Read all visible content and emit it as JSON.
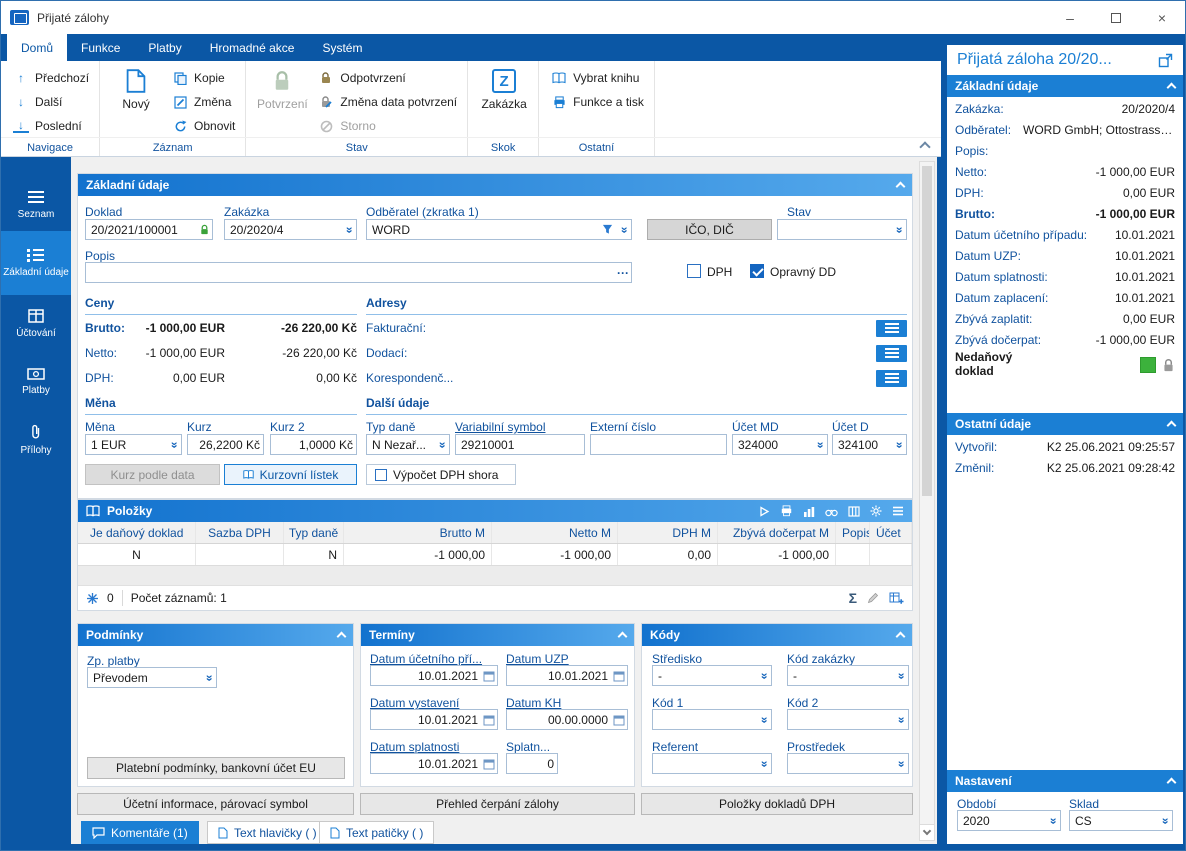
{
  "window": {
    "title": "Přijaté zálohy"
  },
  "icons": {
    "arrow_up": "↑",
    "arrow_down": "↓",
    "dd": "«",
    "sigma": "Σ",
    "ellipsis": "···",
    "minimize": "–",
    "close": "×"
  },
  "ribbon": {
    "tabs": [
      "Domů",
      "Funkce",
      "Platby",
      "Hromadné akce",
      "Systém"
    ],
    "groups": {
      "navigace": {
        "label": "Navigace",
        "items": [
          "Předchozí",
          "Další",
          "Poslední"
        ]
      },
      "zaznam": {
        "label": "Záznam",
        "big": "Nový",
        "items": [
          "Kopie",
          "Změna",
          "Obnovit"
        ]
      },
      "stav": {
        "label": "Stav",
        "big": "Potvrzení",
        "items": [
          "Odpotvrzení",
          "Změna data potvrzení",
          "Storno"
        ]
      },
      "skok": {
        "label": "Skok",
        "big": "Zakázka",
        "z_glyph": "Z"
      },
      "ostatni": {
        "label": "Ostatní",
        "items": [
          "Vybrat knihu",
          "Funkce a tisk"
        ]
      }
    }
  },
  "sidebar": {
    "items": [
      "Seznam",
      "Základní údaje",
      "Účtování",
      "Platby",
      "Přílohy"
    ],
    "active_index": 1
  },
  "form": {
    "title": "Základní údaje",
    "doklad": {
      "label": "Doklad",
      "value": "20/2021/100001"
    },
    "zakazka": {
      "label": "Zakázka",
      "value": "20/2020/4"
    },
    "odberatel": {
      "label": "Odběratel (zkratka 1)",
      "value": "WORD"
    },
    "ico_dic_button": "IČO, DIČ",
    "stav": {
      "label": "Stav",
      "value": ""
    },
    "popis": {
      "label": "Popis",
      "value": ""
    },
    "dph": {
      "label": "DPH",
      "checked": false
    },
    "opravny_dd": {
      "label": "Opravný DD",
      "checked": true
    },
    "ceny": {
      "title": "Ceny",
      "rows": [
        {
          "label": "Brutto:",
          "eur": "-1 000,00 EUR",
          "kc": "-26 220,00 Kč",
          "bold": true
        },
        {
          "label": "Netto:",
          "eur": "-1 000,00 EUR",
          "kc": "-26 220,00 Kč",
          "bold": false
        },
        {
          "label": "DPH:",
          "eur": "0,00 EUR",
          "kc": "0,00 Kč",
          "bold": false
        }
      ]
    },
    "adresy": {
      "title": "Adresy",
      "rows": [
        "Fakturační:",
        "Dodací:",
        "Korespondenč..."
      ]
    },
    "mena": {
      "title": "Měna",
      "mena": {
        "label": "Měna",
        "value": "1 EUR"
      },
      "kurz": {
        "label": "Kurz",
        "value": "26,2200 Kč"
      },
      "kurz2": {
        "label": "Kurz 2",
        "value": "1,0000 Kč"
      },
      "kurz_podle_data": "Kurz podle data",
      "kurzovni_listek": "Kurzovní lístek"
    },
    "dalsi": {
      "title": "Další údaje",
      "typ_dane": {
        "label": "Typ daně",
        "value": "N Nezař..."
      },
      "var_symbol": {
        "label": "Variabilní symbol",
        "value": "29210001"
      },
      "externi": {
        "label": "Externí číslo",
        "value": ""
      },
      "ucet_md": {
        "label": "Účet MD",
        "value": "324000"
      },
      "ucet_d": {
        "label": "Účet D",
        "value": "324100"
      },
      "vypocet": "Výpočet DPH shora"
    }
  },
  "polozky": {
    "title": "Položky",
    "columns": [
      "Je daňový doklad",
      "Sazba DPH",
      "Typ daně",
      "Brutto M",
      "Netto M",
      "DPH M",
      "Zbývá dočerpat M",
      "Popis",
      "Účet"
    ],
    "row": [
      "N",
      "",
      "N",
      "-1 000,00",
      "-1 000,00",
      "0,00",
      "-1 000,00",
      "",
      ""
    ],
    "footer": {
      "freeze_count": "0",
      "record_count": "Počet záznamů: 1"
    }
  },
  "podminky": {
    "title": "Podmínky",
    "zp_platby": {
      "label": "Zp. platby",
      "value": "Převodem"
    },
    "button": "Platební podmínky, bankovní účet EU"
  },
  "terminy": {
    "title": "Termíny",
    "fields": [
      {
        "label": "Datum účetního pří...",
        "value": "10.01.2021"
      },
      {
        "label": "Datum UZP",
        "value": "10.01.2021"
      },
      {
        "label": "Datum vystavení",
        "value": "10.01.2021"
      },
      {
        "label": "Datum KH",
        "value": "00.00.0000"
      },
      {
        "label": "Datum splatnosti",
        "value": "10.01.2021"
      },
      {
        "label": "Splatn...",
        "value": "0"
      }
    ]
  },
  "kody": {
    "title": "Kódy",
    "fields": [
      {
        "label": "Středisko",
        "value": "-"
      },
      {
        "label": "Kód zakázky",
        "value": "-"
      },
      {
        "label": "Kód 1",
        "value": ""
      },
      {
        "label": "Kód 2",
        "value": ""
      },
      {
        "label": "Referent",
        "value": ""
      },
      {
        "label": "Prostředek",
        "value": ""
      }
    ]
  },
  "bottom": {
    "buttons": [
      "Účetní informace, párovací symbol",
      "Přehled čerpání zálohy",
      "Položky dokladů DPH"
    ],
    "tabs": [
      "Komentáře (1)",
      "Text hlavičky ( )",
      "Text patičky ( )"
    ]
  },
  "right_panel": {
    "title": "Přijatá záloha 20/20...",
    "zakladni": {
      "title": "Základní údaje",
      "rows": [
        {
          "label": "Zakázka:",
          "value": "20/2020/4"
        },
        {
          "label": "Odběratel:",
          "value": "WORD GmbH; Ottostrasse..."
        },
        {
          "label": "Popis:",
          "value": ""
        },
        {
          "label": "Netto:",
          "value": "-1 000,00 EUR"
        },
        {
          "label": "DPH:",
          "value": "0,00 EUR"
        },
        {
          "label": "Brutto:",
          "value": "-1 000,00 EUR",
          "bold": true
        },
        {
          "label": "Datum účetního případu:",
          "value": "10.01.2021"
        },
        {
          "label": "Datum UZP:",
          "value": "10.01.2021"
        },
        {
          "label": "Datum splatnosti:",
          "value": "10.01.2021"
        },
        {
          "label": "Datum zaplacení:",
          "value": "10.01.2021"
        },
        {
          "label": "Zbývá zaplatit:",
          "value": "0,00 EUR"
        },
        {
          "label": "Zbývá dočerpat:",
          "value": "-1 000,00 EUR"
        },
        {
          "label": "Nedaňový doklad",
          "indicator": true
        }
      ]
    },
    "ostatni": {
      "title": "Ostatní údaje",
      "rows": [
        {
          "label": "Vytvořil:",
          "value": "K2 25.06.2021 09:25:57"
        },
        {
          "label": "Změnil:",
          "value": "K2 25.06.2021 09:28:42"
        }
      ]
    },
    "nastaveni": {
      "title": "Nastavení",
      "obdobi": {
        "label": "Období",
        "value": "2020"
      },
      "sklad": {
        "label": "Sklad",
        "value": "CS"
      }
    }
  },
  "colors": {
    "dark_blue": "#0b57a5",
    "accent": "#1b7fd4",
    "label_blue": "#10529e",
    "green": "#3cb23c"
  }
}
